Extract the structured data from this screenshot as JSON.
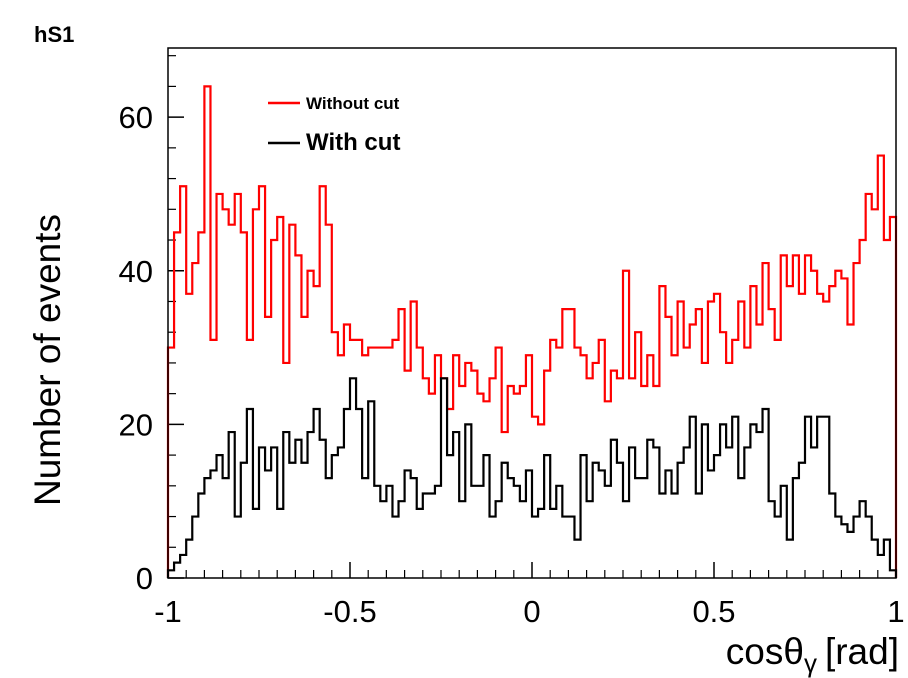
{
  "histogram_name": "hS1",
  "chart_data": {
    "type": "line",
    "subtype": "step-histogram",
    "xlabel_main": "cosθ",
    "xlabel_sub": "γ",
    "xlabel_unit": "[rad]",
    "ylabel": "Number of events",
    "xlim": [
      -1,
      1
    ],
    "ylim": [
      0,
      69
    ],
    "xticks": [
      -1,
      -0.5,
      0,
      0.5,
      1
    ],
    "xtick_labels": [
      "-1",
      "-0.5",
      "0",
      "0.5",
      "1"
    ],
    "yticks": [
      0,
      20,
      40,
      60
    ],
    "ytick_labels": [
      "0",
      "20",
      "40",
      "60"
    ],
    "bin_count": 120,
    "legend_position": "top-left",
    "series": [
      {
        "name": "Without cut",
        "color": "#ff0000",
        "values": [
          30,
          45,
          51,
          37,
          41,
          45,
          64,
          31,
          50,
          48,
          46,
          50,
          45,
          31,
          48,
          51,
          34,
          44,
          47,
          28,
          46,
          42,
          34,
          40,
          38,
          51,
          46,
          32,
          29,
          33,
          31,
          31,
          29,
          30,
          30,
          30,
          30,
          31,
          35,
          27,
          36,
          30,
          26,
          24,
          29,
          26,
          22,
          29,
          25,
          28,
          27,
          24,
          23,
          26,
          30,
          19,
          25,
          24,
          25,
          29,
          21,
          20,
          27,
          31,
          30,
          35,
          35,
          30,
          29,
          26,
          28,
          31,
          23,
          27,
          26,
          40,
          26,
          32,
          25,
          29,
          25,
          38,
          34,
          29,
          36,
          30,
          33,
          35,
          28,
          36,
          37,
          32,
          28,
          31,
          36,
          30,
          38,
          33,
          41,
          35,
          31,
          42,
          38,
          42,
          37,
          42,
          40,
          37,
          36,
          38,
          40,
          39,
          33,
          41,
          44,
          50,
          48,
          55,
          44,
          47
        ]
      },
      {
        "name": "With cut",
        "color": "#000000",
        "values": [
          1,
          2,
          3,
          5,
          8,
          11,
          13,
          14,
          16,
          13,
          19,
          8,
          15,
          22,
          9,
          17,
          14,
          17,
          9,
          19,
          15,
          18,
          15,
          19,
          22,
          18,
          13,
          16,
          17,
          22,
          26,
          22,
          13,
          23,
          12,
          10,
          12,
          8,
          10,
          14,
          13,
          9,
          11,
          11,
          12,
          26,
          16,
          19,
          10,
          20,
          12,
          12,
          16,
          8,
          10,
          15,
          13,
          12,
          10,
          14,
          8,
          9,
          16,
          9,
          12,
          8,
          8,
          5,
          16,
          10,
          15,
          14,
          12,
          18,
          15,
          10,
          17,
          13,
          13,
          18,
          17,
          11,
          14,
          11,
          15,
          17,
          21,
          11,
          20,
          14,
          16,
          20,
          17,
          21,
          13,
          17,
          20,
          19,
          22,
          10,
          8,
          12,
          5,
          13,
          15,
          21,
          17,
          21,
          21,
          11,
          8,
          7,
          6,
          8,
          10,
          8,
          5,
          3,
          5,
          1
        ]
      }
    ]
  }
}
